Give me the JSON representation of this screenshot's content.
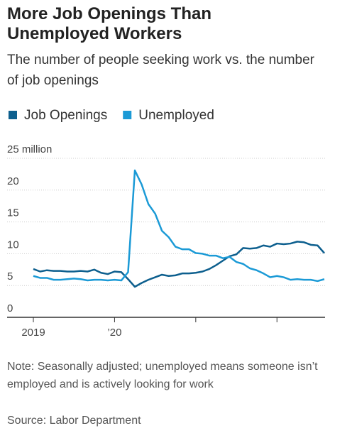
{
  "chart_data": {
    "type": "line",
    "title": "More Job Openings Than Unemployed Workers",
    "subtitle": "The number of people seeking work vs. the number of job openings",
    "categories": [
      "2019",
      null,
      null,
      null,
      null,
      null,
      null,
      null,
      null,
      null,
      null,
      null,
      "’20",
      null,
      null,
      null,
      null,
      null,
      null,
      null,
      null,
      null,
      null,
      null,
      null,
      null,
      null,
      null,
      null,
      null,
      null,
      null,
      null,
      null,
      null,
      null,
      null,
      null,
      null,
      null,
      null,
      null,
      null,
      null
    ],
    "series": [
      {
        "name": "Job Openings",
        "color": "#0d5f8e",
        "values": [
          7.6,
          7.2,
          7.4,
          7.3,
          7.3,
          7.2,
          7.2,
          7.3,
          7.2,
          7.5,
          7.0,
          6.8,
          7.2,
          7.1,
          6.0,
          4.8,
          5.4,
          5.9,
          6.3,
          6.7,
          6.5,
          6.6,
          6.9,
          6.9,
          7.0,
          7.2,
          7.6,
          8.2,
          8.9,
          9.6,
          9.9,
          10.9,
          10.8,
          10.9,
          11.3,
          11.1,
          11.6,
          11.5,
          11.6,
          11.9,
          11.8,
          11.4,
          11.3,
          10.1
        ]
      },
      {
        "name": "Unemployed",
        "color": "#1b9ad6",
        "values": [
          6.5,
          6.2,
          6.2,
          5.9,
          5.9,
          6.0,
          6.1,
          6.0,
          5.8,
          5.9,
          5.9,
          5.8,
          5.9,
          5.8,
          7.1,
          23.1,
          20.9,
          17.8,
          16.3,
          13.6,
          12.6,
          11.1,
          10.7,
          10.7,
          10.1,
          10.0,
          9.7,
          9.7,
          9.3,
          9.5,
          8.7,
          8.4,
          7.7,
          7.4,
          6.9,
          6.3,
          6.5,
          6.3,
          5.9,
          6.0,
          5.9,
          5.9,
          5.7,
          6.0
        ]
      }
    ],
    "ylim": [
      0,
      25
    ],
    "yticks": [
      0,
      5,
      10,
      15,
      20,
      {
        "value": 25,
        "label": "25 million"
      }
    ],
    "grid": true,
    "note": "Note: Seasonally adjusted; unemployed means someone isn’t employed and is actively looking for work",
    "source": "Source: Labor Department"
  }
}
